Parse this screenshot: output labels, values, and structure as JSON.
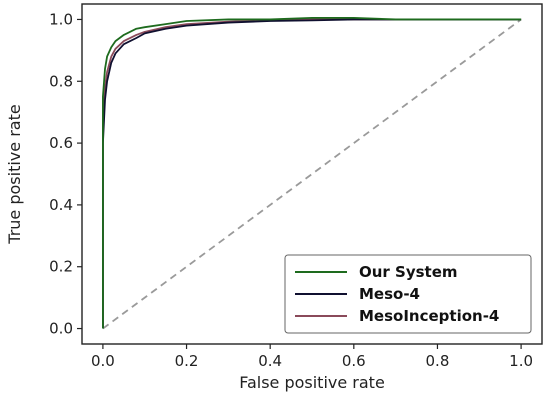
{
  "chart_data": {
    "type": "line",
    "title": "",
    "xlabel": "False positive rate",
    "ylabel": "True positive rate",
    "xlim": [
      -0.05,
      1.05
    ],
    "ylim": [
      -0.05,
      1.05
    ],
    "xticks": [
      "0.0",
      "0.2",
      "0.4",
      "0.6",
      "0.8",
      "1.0"
    ],
    "yticks": [
      "0.0",
      "0.2",
      "0.4",
      "0.6",
      "0.8",
      "1.0"
    ],
    "grid": false,
    "legend": "bottom-right",
    "reference_line": {
      "x": [
        0,
        1
      ],
      "y": [
        0,
        1
      ],
      "style": "dashed",
      "color": "#9a9a9a"
    },
    "series": [
      {
        "name": "Our System",
        "color": "#1e6b1e",
        "x": [
          0,
          0.0,
          0.005,
          0.01,
          0.02,
          0.03,
          0.05,
          0.08,
          0.1,
          0.15,
          0.2,
          0.3,
          0.4,
          0.5,
          0.6,
          0.7,
          0.8,
          1.0
        ],
        "y": [
          0,
          0.75,
          0.84,
          0.88,
          0.91,
          0.93,
          0.95,
          0.97,
          0.975,
          0.985,
          0.995,
          1.0,
          1.0,
          1.005,
          1.005,
          1.0,
          1.0,
          1.0
        ]
      },
      {
        "name": "Meso-4",
        "color": "#101030",
        "x": [
          0,
          0.0,
          0.005,
          0.01,
          0.02,
          0.03,
          0.05,
          0.08,
          0.1,
          0.15,
          0.2,
          0.3,
          0.4,
          0.5,
          0.6,
          0.8,
          1.0
        ],
        "y": [
          0,
          0.6,
          0.74,
          0.8,
          0.86,
          0.89,
          0.92,
          0.94,
          0.955,
          0.97,
          0.98,
          0.99,
          0.995,
          0.997,
          1.0,
          1.0,
          1.0
        ]
      },
      {
        "name": "MesoInception-4",
        "color": "#8a4a5a",
        "x": [
          0,
          0.0,
          0.005,
          0.01,
          0.02,
          0.03,
          0.05,
          0.08,
          0.1,
          0.15,
          0.2,
          0.3,
          0.4,
          0.5,
          0.6,
          0.8,
          1.0
        ],
        "y": [
          0,
          0.66,
          0.78,
          0.83,
          0.88,
          0.905,
          0.93,
          0.95,
          0.96,
          0.975,
          0.985,
          0.993,
          0.997,
          1.0,
          1.0,
          1.0,
          1.0
        ]
      }
    ]
  }
}
